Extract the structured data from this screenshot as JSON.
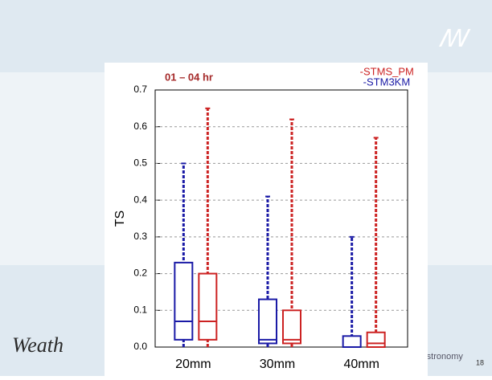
{
  "slide": {
    "footer_left": "Weath",
    "footer_right": "der Astronomy",
    "page_number": "18"
  },
  "chart_data": {
    "type": "box",
    "title": "01 – 04 hr",
    "y_label": "TS",
    "categories": [
      "20mm",
      "30mm",
      "40mm"
    ],
    "series": [
      {
        "name": "STM3KM",
        "color": "#1a1aa6",
        "min": [
          0.0,
          0.0,
          0.0
        ],
        "q1": [
          0.02,
          0.01,
          0.0
        ],
        "median": [
          0.07,
          0.02,
          0.0
        ],
        "q3": [
          0.23,
          0.13,
          0.03
        ],
        "max": [
          0.5,
          0.41,
          0.3
        ]
      },
      {
        "name": "STMS_PM",
        "color": "#cc2222",
        "min": [
          0.0,
          0.0,
          0.0
        ],
        "q1": [
          0.02,
          0.01,
          0.0
        ],
        "median": [
          0.07,
          0.02,
          0.01
        ],
        "q3": [
          0.2,
          0.1,
          0.04
        ],
        "max": [
          0.65,
          0.62,
          0.57
        ]
      }
    ],
    "ylim": [
      0,
      0.7
    ],
    "yticks": [
      {
        "value": 0,
        "label": "0.0"
      },
      0.1,
      0.2,
      0.3,
      0.4,
      0.5,
      0.6,
      0.7
    ],
    "grid": true,
    "legend": "top-right"
  }
}
